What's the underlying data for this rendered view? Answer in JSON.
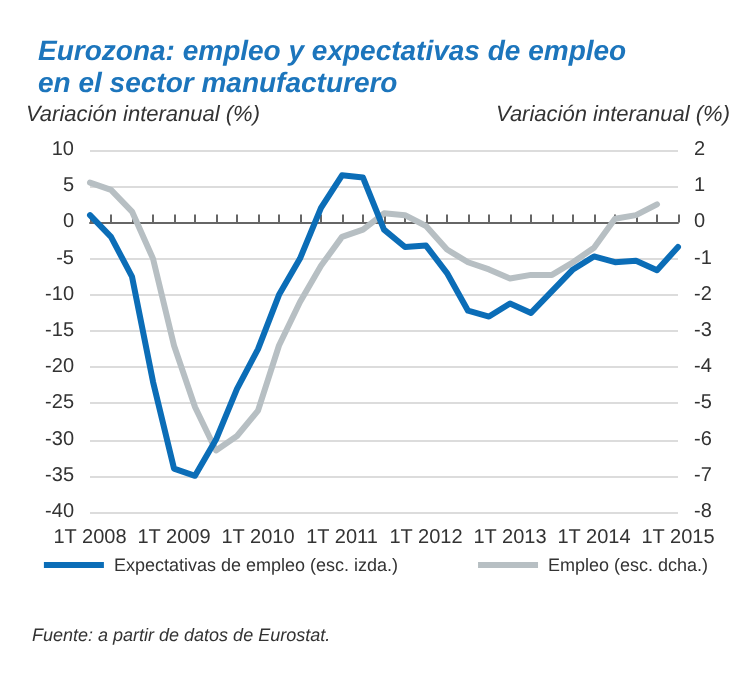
{
  "chart_data": {
    "type": "line",
    "title": "Eurozona: empleo y expectativas de empleo\nen el sector manufacturero",
    "ylabel": "Variación interanual (%)",
    "y2label": "Variación interanual (%)",
    "categories": [
      "1T 2008",
      null,
      null,
      null,
      "1T 2009",
      null,
      null,
      null,
      "1T 2010",
      null,
      null,
      null,
      "1T 2011",
      null,
      null,
      null,
      "1T 2012",
      null,
      null,
      null,
      "1T 2013",
      null,
      null,
      null,
      "1T 2014",
      null,
      null,
      null,
      "1T 2015"
    ],
    "series": [
      {
        "name": "Expectativas de empleo (esc. izda.)",
        "color": "#0b6db7",
        "values": [
          1,
          -2,
          -7.5,
          -22,
          -34,
          -35,
          -30,
          -23,
          -17.5,
          -10,
          -5,
          2,
          6.5,
          6.2,
          -1,
          -3.4,
          -3.2,
          -7,
          -12.2,
          -13,
          -11.2,
          -12.5,
          -9.5,
          -6.5,
          -4.7,
          -5.5,
          -5.3,
          -6.6,
          -3.4
        ]
      },
      {
        "name": "Empleo (esc. dcha.)",
        "color": "#b7bfc3",
        "axis": "y2",
        "values": [
          1.1,
          0.9,
          0.3,
          -1,
          -3.4,
          -5.1,
          -6.3,
          -5.9,
          -5.2,
          -3.4,
          -2.2,
          -1.2,
          -0.4,
          -0.2,
          0.25,
          0.2,
          -0.1,
          -0.75,
          -1.1,
          -1.3,
          -1.55,
          -1.45,
          -1.45,
          -1.1,
          -0.7,
          0.1,
          0.2,
          0.5,
          null
        ]
      }
    ],
    "ylim": [
      -40,
      10
    ],
    "yticks": [
      -40,
      -35,
      -30,
      -25,
      -20,
      -15,
      -10,
      -5,
      0,
      5,
      10
    ],
    "y2lim": [
      -8,
      2
    ],
    "y2ticks": [
      -8,
      -7,
      -6,
      -5,
      -4,
      -3,
      -2,
      -1,
      0,
      1,
      2
    ],
    "grid": "y",
    "legend": "bottom",
    "marker": "none",
    "line_style": "solid",
    "annotations": [
      "Fuente: a partir de datos de Eurostat."
    ]
  }
}
